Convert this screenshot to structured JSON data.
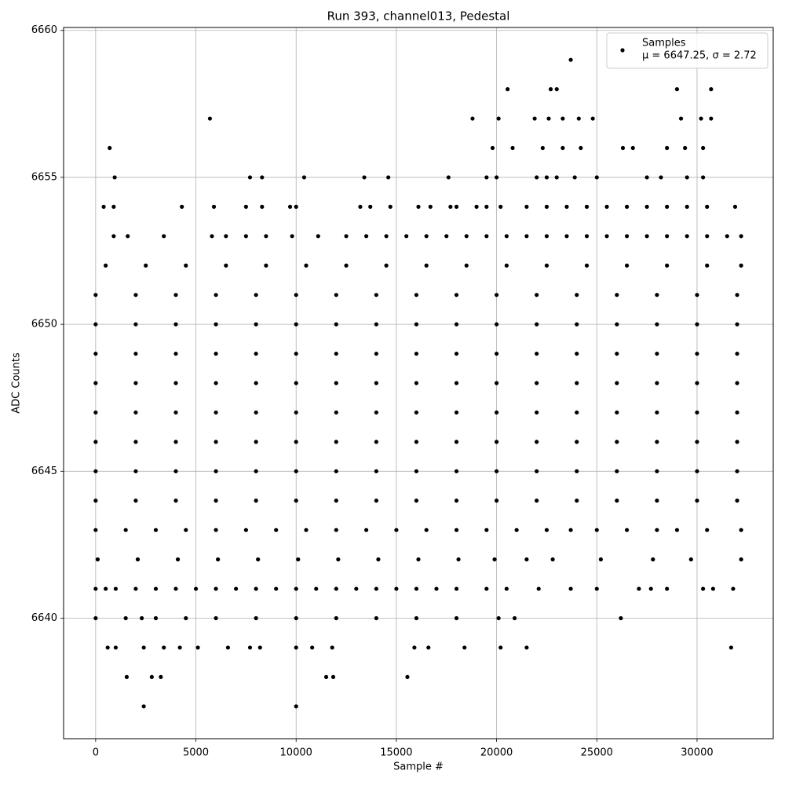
{
  "chart_data": {
    "type": "scatter",
    "title": "Run 393, channel013, Pedestal",
    "x_label": "Sample #",
    "y_label": "ADC Counts",
    "xlim": [
      -1600,
      33800
    ],
    "ylim": [
      6635.9,
      6660.1
    ],
    "xticks": [
      0,
      5000,
      10000,
      15000,
      20000,
      25000,
      30000
    ],
    "yticks": [
      6640,
      6645,
      6650,
      6655,
      6660
    ],
    "grid": true,
    "legend": "upper right",
    "legend_note": "μ = 6647.25, σ = 2.72",
    "series": [
      {
        "name": "Samples",
        "color": "#000000",
        "x": [
          0,
          2000,
          4000,
          6000,
          8000,
          10000,
          12000,
          14000,
          16000,
          18000,
          20000,
          22000,
          24000,
          26000,
          28000,
          30000,
          32000,
          0,
          2000,
          4000,
          6000,
          8000,
          10000,
          12000,
          14000,
          16000,
          18000,
          20000,
          22000,
          24000,
          26000,
          28000,
          30000,
          32000,
          0,
          2000,
          4000,
          6000,
          8000,
          10000,
          12000,
          14000,
          16000,
          18000,
          20000,
          22000,
          24000,
          26000,
          28000,
          30000,
          32000,
          0,
          2000,
          4000,
          6000,
          8000,
          10000,
          12000,
          14000,
          16000,
          18000,
          20000,
          22000,
          24000,
          26000,
          28000,
          30000,
          32000,
          0,
          2000,
          4000,
          6000,
          8000,
          10000,
          12000,
          14000,
          16000,
          18000,
          20000,
          22000,
          24000,
          26000,
          28000,
          30000,
          32000,
          0,
          2000,
          4000,
          6000,
          8000,
          10000,
          12000,
          14000,
          16000,
          18000,
          20000,
          22000,
          24000,
          26000,
          28000,
          30000,
          32000,
          0,
          2000,
          4000,
          6000,
          8000,
          10000,
          12000,
          14000,
          16000,
          18000,
          20000,
          22000,
          24000,
          26000,
          28000,
          30000,
          32000,
          0,
          2000,
          4000,
          6000,
          8000,
          10000,
          12000,
          14000,
          16000,
          18000,
          20000,
          22000,
          24000,
          26000,
          28000,
          30000,
          32000,
          500,
          2500,
          4500,
          6500,
          8500,
          10500,
          12500,
          14500,
          16500,
          18500,
          20500,
          22500,
          24500,
          26500,
          28500,
          30500,
          32200,
          100,
          2100,
          4100,
          6100,
          8100,
          10100,
          12100,
          14100,
          16100,
          18100,
          19900,
          21500,
          22800,
          25200,
          27800,
          29700,
          32200,
          0,
          1500,
          3000,
          4500,
          6000,
          7500,
          9000,
          10500,
          12000,
          13500,
          15000,
          16500,
          18000,
          19500,
          21000,
          22500,
          23700,
          25000,
          26500,
          28000,
          29000,
          30500,
          32200,
          900,
          1600,
          3400,
          5800,
          6500,
          7500,
          8500,
          9800,
          11100,
          12500,
          13500,
          14500,
          15500,
          16500,
          17500,
          18500,
          19500,
          20500,
          21500,
          22500,
          23500,
          24500,
          25500,
          26500,
          27500,
          28500,
          29500,
          30500,
          31500,
          32200,
          0,
          500,
          1000,
          2000,
          3000,
          4000,
          5000,
          6000,
          7000,
          8000,
          9000,
          10000,
          11000,
          12000,
          13000,
          14000,
          15000,
          16000,
          17000,
          18000,
          19500,
          20500,
          22100,
          23700,
          25000,
          27100,
          27700,
          28500,
          30300,
          30800,
          31800,
          400,
          900,
          4300,
          5900,
          7500,
          8300,
          9700,
          10000,
          13200,
          13700,
          14700,
          16100,
          16700,
          17700,
          18000,
          19000,
          19500,
          20200,
          21500,
          22500,
          23500,
          24500,
          25500,
          26500,
          27500,
          28500,
          29500,
          30500,
          31900,
          950,
          7700,
          8300,
          10400,
          13400,
          14600,
          17600,
          19500,
          20000,
          22000,
          22500,
          23000,
          23900,
          25000,
          27500,
          28200,
          29500,
          30300,
          700,
          19800,
          20800,
          22300,
          23300,
          24200,
          26300,
          26800,
          28500,
          29400,
          30300,
          5700,
          18800,
          20100,
          21900,
          22600,
          23300,
          24100,
          24800,
          29200,
          30200,
          30700,
          20550,
          22700,
          23000,
          29000,
          30700,
          23700,
          0,
          1500,
          2300,
          3000,
          4500,
          6000,
          8000,
          10000,
          12000,
          14000,
          16000,
          18000,
          20100,
          20900,
          26200,
          600,
          1000,
          2400,
          3400,
          4200,
          5100,
          6600,
          7700,
          8200,
          10000,
          10800,
          11800,
          15900,
          16600,
          18400,
          20200,
          21500,
          31700,
          1550,
          2800,
          3250,
          11500,
          11850,
          15550,
          2400,
          10000
        ],
        "values": [
          6651,
          6651,
          6651,
          6651,
          6651,
          6651,
          6651,
          6651,
          6651,
          6651,
          6651,
          6651,
          6651,
          6651,
          6651,
          6651,
          6651,
          6650,
          6650,
          6650,
          6650,
          6650,
          6650,
          6650,
          6650,
          6650,
          6650,
          6650,
          6650,
          6650,
          6650,
          6650,
          6650,
          6650,
          6649,
          6649,
          6649,
          6649,
          6649,
          6649,
          6649,
          6649,
          6649,
          6649,
          6649,
          6649,
          6649,
          6649,
          6649,
          6649,
          6649,
          6648,
          6648,
          6648,
          6648,
          6648,
          6648,
          6648,
          6648,
          6648,
          6648,
          6648,
          6648,
          6648,
          6648,
          6648,
          6648,
          6648,
          6647,
          6647,
          6647,
          6647,
          6647,
          6647,
          6647,
          6647,
          6647,
          6647,
          6647,
          6647,
          6647,
          6647,
          6647,
          6647,
          6647,
          6646,
          6646,
          6646,
          6646,
          6646,
          6646,
          6646,
          6646,
          6646,
          6646,
          6646,
          6646,
          6646,
          6646,
          6646,
          6646,
          6646,
          6645,
          6645,
          6645,
          6645,
          6645,
          6645,
          6645,
          6645,
          6645,
          6645,
          6645,
          6645,
          6645,
          6645,
          6645,
          6645,
          6645,
          6644,
          6644,
          6644,
          6644,
          6644,
          6644,
          6644,
          6644,
          6644,
          6644,
          6644,
          6644,
          6644,
          6644,
          6644,
          6644,
          6644,
          6652,
          6652,
          6652,
          6652,
          6652,
          6652,
          6652,
          6652,
          6652,
          6652,
          6652,
          6652,
          6652,
          6652,
          6652,
          6652,
          6652,
          6642,
          6642,
          6642,
          6642,
          6642,
          6642,
          6642,
          6642,
          6642,
          6642,
          6642,
          6642,
          6642,
          6642,
          6642,
          6642,
          6642,
          6643,
          6643,
          6643,
          6643,
          6643,
          6643,
          6643,
          6643,
          6643,
          6643,
          6643,
          6643,
          6643,
          6643,
          6643,
          6643,
          6643,
          6643,
          6643,
          6643,
          6643,
          6643,
          6643,
          6653,
          6653,
          6653,
          6653,
          6653,
          6653,
          6653,
          6653,
          6653,
          6653,
          6653,
          6653,
          6653,
          6653,
          6653,
          6653,
          6653,
          6653,
          6653,
          6653,
          6653,
          6653,
          6653,
          6653,
          6653,
          6653,
          6653,
          6653,
          6653,
          6653,
          6641,
          6641,
          6641,
          6641,
          6641,
          6641,
          6641,
          6641,
          6641,
          6641,
          6641,
          6641,
          6641,
          6641,
          6641,
          6641,
          6641,
          6641,
          6641,
          6641,
          6641,
          6641,
          6641,
          6641,
          6641,
          6641,
          6641,
          6641,
          6641,
          6641,
          6641,
          6654,
          6654,
          6654,
          6654,
          6654,
          6654,
          6654,
          6654,
          6654,
          6654,
          6654,
          6654,
          6654,
          6654,
          6654,
          6654,
          6654,
          6654,
          6654,
          6654,
          6654,
          6654,
          6654,
          6654,
          6654,
          6654,
          6654,
          6654,
          6654,
          6655,
          6655,
          6655,
          6655,
          6655,
          6655,
          6655,
          6655,
          6655,
          6655,
          6655,
          6655,
          6655,
          6655,
          6655,
          6655,
          6655,
          6655,
          6656,
          6656,
          6656,
          6656,
          6656,
          6656,
          6656,
          6656,
          6656,
          6656,
          6656,
          6657,
          6657,
          6657,
          6657,
          6657,
          6657,
          6657,
          6657,
          6657,
          6657,
          6657,
          6658,
          6658,
          6658,
          6658,
          6658,
          6659,
          6640,
          6640,
          6640,
          6640,
          6640,
          6640,
          6640,
          6640,
          6640,
          6640,
          6640,
          6640,
          6640,
          6640,
          6640,
          6639,
          6639,
          6639,
          6639,
          6639,
          6639,
          6639,
          6639,
          6639,
          6639,
          6639,
          6639,
          6639,
          6639,
          6639,
          6639,
          6639,
          6639,
          6638,
          6638,
          6638,
          6638,
          6638,
          6638,
          6637,
          6637
        ]
      }
    ]
  }
}
